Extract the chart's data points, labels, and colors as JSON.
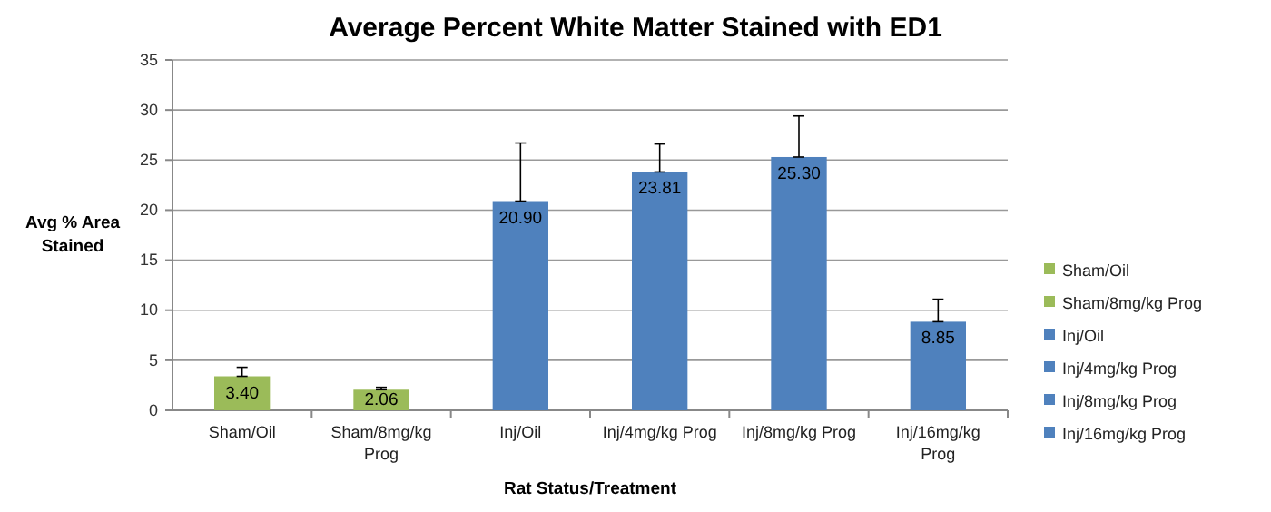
{
  "chart_data": {
    "type": "bar",
    "title": "Average Percent White Matter Stained with ED1",
    "xlabel": "Rat Status/Treatment",
    "ylabel": "Avg % Area Stained",
    "categories": [
      "Sham/Oil",
      "Sham/8mg/kg Prog",
      "Inj/Oil",
      "Inj/4mg/kg Prog",
      "Inj/8mg/kg Prog",
      "Inj/16mg/kg Prog"
    ],
    "series": [
      {
        "name": "Sham/Oil",
        "color": "#9bbb59",
        "values": [
          3.4,
          null,
          null,
          null,
          null,
          null
        ],
        "errors": [
          [
            3.4,
            4.3
          ],
          null,
          null,
          null,
          null,
          null
        ],
        "value_labels": [
          "3.40",
          null,
          null,
          null,
          null,
          null
        ]
      },
      {
        "name": "Sham/8mg/kg Prog",
        "color": "#9bbb59",
        "values": [
          null,
          2.06,
          null,
          null,
          null,
          null
        ],
        "errors": [
          null,
          [
            2.06,
            2.3
          ],
          null,
          null,
          null,
          null
        ],
        "value_labels": [
          null,
          "2.06",
          null,
          null,
          null,
          null
        ]
      },
      {
        "name": "Inj/Oil",
        "color": "#4f81bd",
        "values": [
          null,
          null,
          20.9,
          null,
          null,
          null
        ],
        "errors": [
          null,
          null,
          [
            20.9,
            26.7
          ],
          null,
          null,
          null
        ],
        "value_labels": [
          null,
          null,
          "20.90",
          null,
          null,
          null
        ]
      },
      {
        "name": "Inj/4mg/kg Prog",
        "color": "#4f81bd",
        "values": [
          null,
          null,
          null,
          23.81,
          null,
          null
        ],
        "errors": [
          null,
          null,
          null,
          [
            23.81,
            26.6
          ],
          null,
          null
        ],
        "value_labels": [
          null,
          null,
          null,
          "23.81",
          null,
          null
        ]
      },
      {
        "name": "Inj/8mg/kg Prog",
        "color": "#4f81bd",
        "values": [
          null,
          null,
          null,
          null,
          25.3,
          null
        ],
        "errors": [
          null,
          null,
          null,
          null,
          [
            25.3,
            29.4
          ],
          null
        ],
        "value_labels": [
          null,
          null,
          null,
          null,
          "25.30",
          null
        ]
      },
      {
        "name": "Inj/16mg/kg Prog",
        "color": "#4f81bd",
        "values": [
          null,
          null,
          null,
          null,
          null,
          8.85
        ],
        "errors": [
          null,
          null,
          null,
          null,
          null,
          [
            8.85,
            11.1
          ]
        ],
        "value_labels": [
          null,
          null,
          null,
          null,
          null,
          "8.85"
        ]
      }
    ],
    "ylim": [
      0,
      35
    ],
    "yticks": [
      0,
      5,
      10,
      15,
      20,
      25,
      30,
      35
    ],
    "grid": "y",
    "legend": "right"
  }
}
